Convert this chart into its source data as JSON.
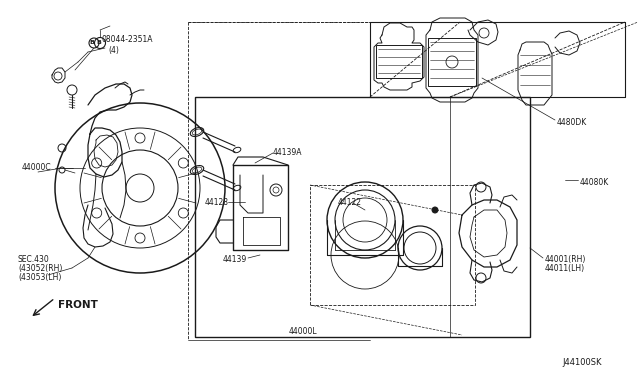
{
  "background_color": "#ffffff",
  "line_color": "#1a1a1a",
  "fig_width": 6.4,
  "fig_height": 3.72,
  "dpi": 100,
  "diagram_code": "J44100SK",
  "labels": {
    "bolt_ref": "08044-2351A",
    "bolt_qty": "(4)",
    "part_44000C": "44000C",
    "sec_430": "SEC.430",
    "sec_430b": "(43052(RH)",
    "sec_430c": "(43053(LH)",
    "part_44139A": "44139A",
    "part_44128": "44128",
    "part_44122": "44122",
    "part_44139": "44139",
    "part_44000L": "44000L",
    "part_4480DK": "4480DK",
    "part_44080K": "44080K",
    "part_44001": "44001(RH)",
    "part_44011": "44011(LH)",
    "front_label": "FRONT"
  }
}
